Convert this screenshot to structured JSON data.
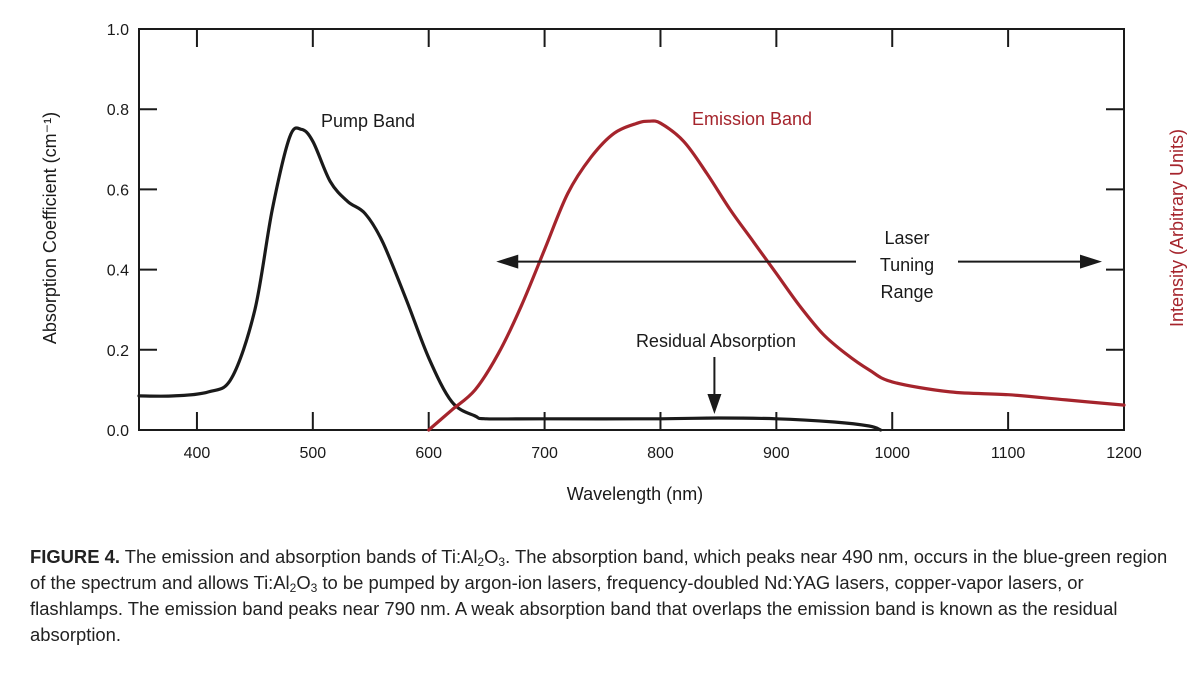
{
  "colors": {
    "axis": "#1a1a1a",
    "pump": "#1a1a1a",
    "emission": "#a5242c",
    "right_axis_label": "#a5242c"
  },
  "chart_data": {
    "type": "line",
    "xlabel": "Wavelength (nm)",
    "ylabel_left": "Absorption Coefficient (cm⁻¹)",
    "ylabel_right": "Intensity (Arbitrary Units)",
    "xlim": [
      350,
      1200
    ],
    "ylim": [
      0,
      1.0
    ],
    "xticks": [
      400,
      500,
      600,
      700,
      800,
      900,
      1000,
      1100,
      1200
    ],
    "yticks": [
      0.0,
      0.2,
      0.4,
      0.6,
      0.8,
      1.0
    ],
    "grid": false,
    "series": [
      {
        "name": "Pump Band",
        "color": "#1a1a1a",
        "x": [
          350,
          380,
          410,
          430,
          450,
          465,
          480,
          490,
          500,
          515,
          530,
          545,
          560,
          580,
          600,
          620,
          640,
          650,
          700,
          800,
          850,
          900,
          950,
          980,
          990
        ],
        "y": [
          0.085,
          0.085,
          0.095,
          0.13,
          0.3,
          0.55,
          0.73,
          0.75,
          0.72,
          0.62,
          0.57,
          0.54,
          0.47,
          0.33,
          0.18,
          0.07,
          0.035,
          0.028,
          0.028,
          0.028,
          0.03,
          0.028,
          0.02,
          0.01,
          0.0
        ]
      },
      {
        "name": "Emission Band",
        "color": "#a5242c",
        "x": [
          600,
          620,
          640,
          660,
          680,
          700,
          720,
          740,
          760,
          780,
          790,
          800,
          820,
          840,
          860,
          880,
          900,
          920,
          940,
          960,
          980,
          1000,
          1050,
          1100,
          1150,
          1200
        ],
        "y": [
          0.0,
          0.05,
          0.1,
          0.19,
          0.31,
          0.45,
          0.59,
          0.68,
          0.74,
          0.765,
          0.77,
          0.765,
          0.72,
          0.64,
          0.55,
          0.47,
          0.39,
          0.31,
          0.24,
          0.19,
          0.15,
          0.12,
          0.095,
          0.088,
          0.075,
          0.062
        ]
      }
    ],
    "annotations": {
      "pump_label": "Pump Band",
      "emission_label": "Emission Band",
      "tuning_line1": "Laser",
      "tuning_line2": "Tuning",
      "tuning_line3": "Range",
      "tuning_range": [
        660,
        1200
      ],
      "residual_label": "Residual Absorption",
      "residual_x": 850
    }
  },
  "caption": {
    "figure_label": "FIGURE 4.",
    "line1_a": " The emission and absorption bands of Ti:Al",
    "sub_2": "2",
    "line1_b": "O",
    "sub_3": "3",
    "line1_c": ". The absorption band, which peaks near 490 nm, occurs in the blue-green region of the spectrum and allows Ti:Al",
    "line1_d": "O",
    "line1_e": " to be pumped by argon-ion lasers, frequency-doubled Nd:YAG lasers, copper-vapor lasers, or flashlamps. The emission band peaks near 790 nm. A weak absorption band that overlaps the emission band is known as the residual absorption."
  }
}
